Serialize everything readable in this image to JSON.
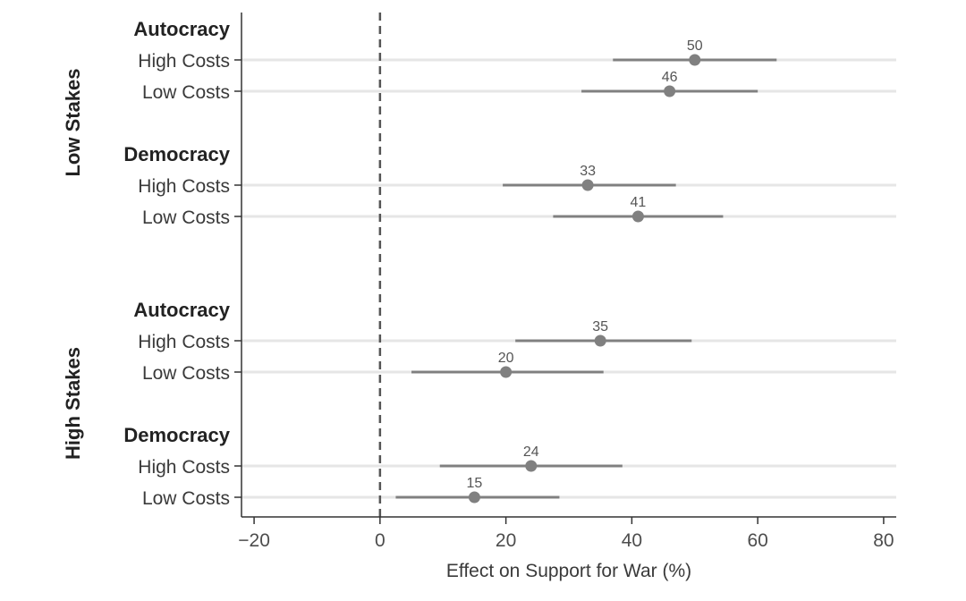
{
  "chart_data": {
    "type": "scatter",
    "subtype": "dot-and-whisker",
    "xlabel": "Effect on Support for War (%)",
    "xlim": [
      -22,
      82
    ],
    "xticks": [
      -20,
      0,
      20,
      40,
      60,
      80
    ],
    "xtick_labels": [
      "−20",
      "0",
      "20",
      "40",
      "60",
      "80"
    ],
    "reference_line": {
      "x": 0,
      "style": "dashed"
    },
    "grid": "horizontal row lines",
    "colors": {
      "point": "#808080",
      "interval": "#808080",
      "rowline": "#e6e6e6",
      "refline": "#555555",
      "axis": "#333333"
    },
    "panels": [
      {
        "label": "Low Stakes",
        "groups": [
          {
            "label": "Autocracy",
            "rows": [
              {
                "label": "High Costs",
                "estimate": 50,
                "label_text": "50",
                "ci": [
                  37,
                  63
                ]
              },
              {
                "label": "Low Costs",
                "estimate": 46,
                "label_text": "46",
                "ci": [
                  32,
                  60
                ]
              }
            ]
          },
          {
            "label": "Democracy",
            "rows": [
              {
                "label": "High Costs",
                "estimate": 33,
                "label_text": "33",
                "ci": [
                  19.5,
                  47
                ]
              },
              {
                "label": "Low Costs",
                "estimate": 41,
                "label_text": "41",
                "ci": [
                  27.5,
                  54.5
                ]
              }
            ]
          }
        ]
      },
      {
        "label": "High Stakes",
        "groups": [
          {
            "label": "Autocracy",
            "rows": [
              {
                "label": "High Costs",
                "estimate": 35,
                "label_text": "35",
                "ci": [
                  21.5,
                  49.5
                ]
              },
              {
                "label": "Low Costs",
                "estimate": 20,
                "label_text": "20",
                "ci": [
                  5,
                  35.5
                ]
              }
            ]
          },
          {
            "label": "Democracy",
            "rows": [
              {
                "label": "High Costs",
                "estimate": 24,
                "label_text": "24",
                "ci": [
                  9.5,
                  38.5
                ]
              },
              {
                "label": "Low Costs",
                "estimate": 15,
                "label_text": "15",
                "ci": [
                  2.5,
                  28.5
                ]
              }
            ]
          }
        ]
      }
    ]
  }
}
